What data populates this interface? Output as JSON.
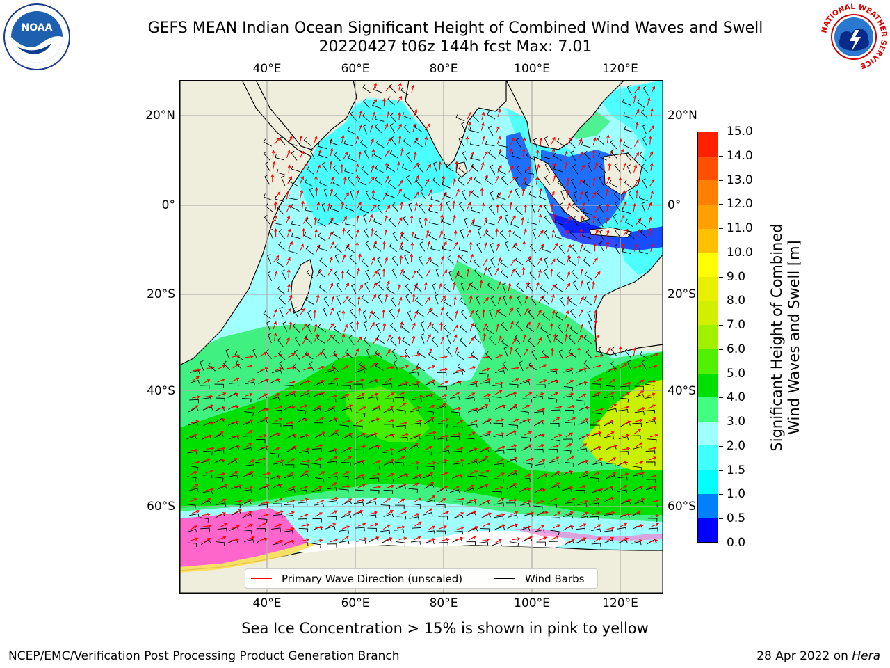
{
  "header": {
    "title_line1": "GEFS MEAN Indian Ocean Significant Height of Combined Wind Waves and Swell",
    "title_line2": "20220427 t06z 144h fcst    Max: 7.01"
  },
  "logos": {
    "left": "NOAA",
    "right": "NATIONAL WEATHER SERVICE"
  },
  "map": {
    "lon_labels": [
      "40°E",
      "60°E",
      "80°E",
      "100°E",
      "120°E"
    ],
    "lat_labels": [
      "20°N",
      "0°",
      "20°S",
      "40°S",
      "60°S"
    ],
    "colors": {
      "land": "#efeedc",
      "ice_pink": "#ff66cc",
      "ice_yellow": "#ffdd55",
      "antarctic_ice": "#ffffff",
      "grid": "#b0b0b0",
      "wave_arrow": "#ff0000",
      "wind_barb": "#000000"
    },
    "legend": {
      "wave_label": "Primary Wave Direction (unscaled)",
      "barb_label": "Wind Barbs"
    }
  },
  "colorbar": {
    "title_line1": "Significant Height of Combined",
    "title_line2": "Wind Waves and Swell [m]",
    "ticks": [
      "15.0",
      "14.0",
      "13.0",
      "12.0",
      "11.0",
      "10.0",
      "9.0",
      "8.0",
      "7.0",
      "6.0",
      "5.0",
      "4.0",
      "3.0",
      "2.0",
      "1.5",
      "1.0",
      "0.5",
      "0.0"
    ],
    "colors": [
      "#0000ff",
      "#0080ff",
      "#00ffff",
      "#40ffff",
      "#a0ffff",
      "#40ff80",
      "#00e000",
      "#50f000",
      "#a0f000",
      "#d0f000",
      "#e8f000",
      "#ffff00",
      "#ffc000",
      "#ffa000",
      "#ff8000",
      "#ff5000",
      "#ff2000",
      "#ff0000"
    ]
  },
  "caption": "Sea Ice Concentration > 15% is shown in pink to yellow",
  "footer": {
    "left": "NCEP/EMC/Verification Post Processing Product Generation Branch",
    "right_date": "28 Apr 2022 on ",
    "right_host": "Hera"
  }
}
